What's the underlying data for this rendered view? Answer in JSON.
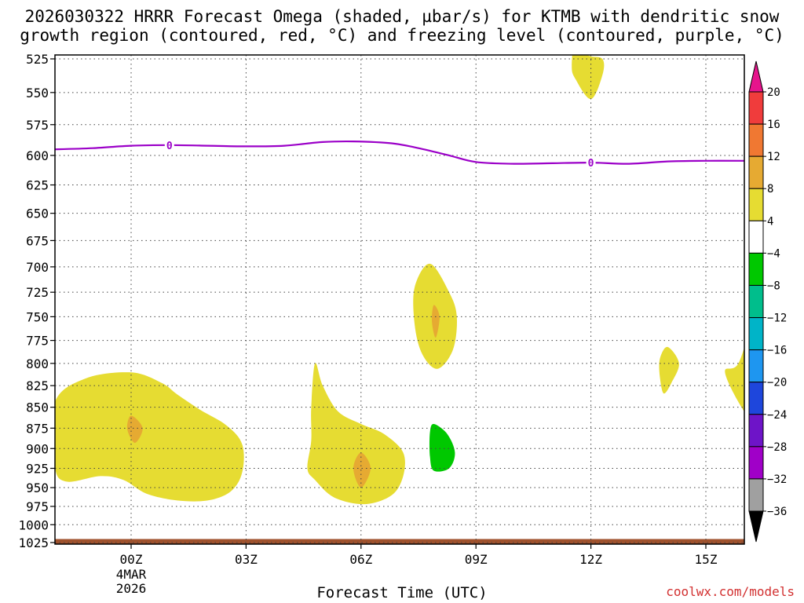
{
  "title": {
    "line1": "2026030322 HRRR Forecast Omega (shaded, µbar/s) for KTMB with dendritic snow",
    "line2": "growth region (contoured, red, °C) and freezing level (contoured, purple, °C)"
  },
  "credit": "coolwx.com/models",
  "chart_data": {
    "type": "time-height contour",
    "xlabel": "Forecast Time (UTC)",
    "x_ticks": [
      {
        "hour": 0,
        "label": "00Z",
        "sub1": "4MAR",
        "sub2": "2026"
      },
      {
        "hour": 3,
        "label": "03Z",
        "sub1": "",
        "sub2": ""
      },
      {
        "hour": 6,
        "label": "06Z",
        "sub1": "",
        "sub2": ""
      },
      {
        "hour": 9,
        "label": "09Z",
        "sub1": "",
        "sub2": ""
      },
      {
        "hour": 12,
        "label": "12Z",
        "sub1": "",
        "sub2": ""
      },
      {
        "hour": 15,
        "label": "15Z",
        "sub1": "",
        "sub2": ""
      }
    ],
    "xlim": [
      -2,
      16
    ],
    "y_ticks": [
      525,
      550,
      575,
      600,
      625,
      650,
      675,
      700,
      725,
      750,
      775,
      800,
      825,
      850,
      875,
      900,
      925,
      950,
      975,
      1000,
      1025
    ],
    "ylim": [
      1025,
      515
    ],
    "y_scale": "log-pressure",
    "grid": true,
    "colorbar": {
      "labels": [
        "20",
        "16",
        "12",
        "8",
        "4",
        "−4",
        "−8",
        "−12",
        "−16",
        "−20",
        "−24",
        "−28",
        "−32",
        "−36"
      ],
      "bins": [
        {
          "from": 16,
          "to": 20,
          "color": "#f03c3c"
        },
        {
          "from": 12,
          "to": 16,
          "color": "#f07832"
        },
        {
          "from": 8,
          "to": 12,
          "color": "#e6aa32"
        },
        {
          "from": 4,
          "to": 8,
          "color": "#e6dc32"
        },
        {
          "from": -4,
          "to": 4,
          "color": "#ffffff"
        },
        {
          "from": -8,
          "to": -4,
          "color": "#00c800"
        },
        {
          "from": -12,
          "to": -8,
          "color": "#00be8c"
        },
        {
          "from": -16,
          "to": -12,
          "color": "#00b4c8"
        },
        {
          "from": -20,
          "to": -16,
          "color": "#1e96f0"
        },
        {
          "from": -24,
          "to": -20,
          "color": "#1e46dc"
        },
        {
          "from": -28,
          "to": -24,
          "color": "#6e14c8"
        },
        {
          "from": -32,
          "to": -28,
          "color": "#a000c8"
        },
        {
          "from": -36,
          "to": -32,
          "color": "#a0a0a0"
        }
      ],
      "over_color": "#e6148c",
      "under_color": "#000000"
    },
    "freezing_level": {
      "label": "0",
      "color": "#9b00c8",
      "label_at_hours": [
        1,
        12
      ],
      "points": [
        [
          -2,
          595
        ],
        [
          -1,
          594
        ],
        [
          0,
          592
        ],
        [
          1,
          591.5
        ],
        [
          2,
          592
        ],
        [
          3,
          592.5
        ],
        [
          4,
          592
        ],
        [
          5,
          589
        ],
        [
          5.8,
          588.5
        ],
        [
          6.8,
          590
        ],
        [
          7.5,
          594
        ],
        [
          8.3,
          600
        ],
        [
          9,
          605.5
        ],
        [
          10,
          607
        ],
        [
          11,
          606.5
        ],
        [
          12,
          606
        ],
        [
          13,
          607
        ],
        [
          14,
          605
        ],
        [
          15,
          604.5
        ],
        [
          16,
          604.5
        ]
      ]
    },
    "omega_regions": [
      {
        "color": "#e6dc32",
        "points": [
          [
            -2,
            845
          ],
          [
            -1.2,
            817
          ],
          [
            0,
            810
          ],
          [
            0.8,
            822
          ],
          [
            1.2,
            835
          ],
          [
            1.8,
            853
          ],
          [
            2.5,
            872
          ],
          [
            2.9,
            895
          ],
          [
            2.9,
            930
          ],
          [
            2.6,
            955
          ],
          [
            2.0,
            967
          ],
          [
            1.2,
            967
          ],
          [
            0.4,
            958
          ],
          [
            -0.2,
            940
          ],
          [
            -0.8,
            935
          ],
          [
            -1.7,
            942
          ],
          [
            -2,
            920
          ]
        ]
      },
      {
        "color": "#e6dc32",
        "points": [
          [
            4.8,
            800
          ],
          [
            5.0,
            825
          ],
          [
            5.4,
            855
          ],
          [
            6.0,
            870
          ],
          [
            6.6,
            882
          ],
          [
            7.1,
            905
          ],
          [
            7.1,
            935
          ],
          [
            6.8,
            960
          ],
          [
            6.1,
            972
          ],
          [
            5.3,
            963
          ],
          [
            4.8,
            940
          ],
          [
            4.6,
            925
          ],
          [
            4.7,
            890
          ],
          [
            4.7,
            850
          ]
        ]
      },
      {
        "color": "#e6dc32",
        "points": [
          [
            7.8,
            697
          ],
          [
            8.3,
            725
          ],
          [
            8.5,
            750
          ],
          [
            8.4,
            785
          ],
          [
            8.0,
            806
          ],
          [
            7.6,
            790
          ],
          [
            7.4,
            758
          ],
          [
            7.4,
            720
          ]
        ]
      },
      {
        "color": "#e6dc32",
        "points": [
          [
            11.6,
            510
          ],
          [
            11.9,
            522
          ],
          [
            12.3,
            525
          ],
          [
            12.3,
            537
          ],
          [
            12.0,
            555
          ],
          [
            11.6,
            540
          ],
          [
            11.5,
            530
          ]
        ]
      },
      {
        "color": "#e6dc32",
        "points": [
          [
            14.0,
            782
          ],
          [
            14.3,
            800
          ],
          [
            14.1,
            822
          ],
          [
            13.9,
            834
          ],
          [
            13.8,
            815
          ],
          [
            13.8,
            795
          ]
        ]
      },
      {
        "color": "#e6dc32",
        "points": [
          [
            15.85,
            800
          ],
          [
            16.4,
            745
          ],
          [
            16.4,
            870
          ],
          [
            16.0,
            855
          ],
          [
            15.5,
            810
          ]
        ]
      },
      {
        "color": "#e6aa32",
        "points": [
          [
            0,
            860
          ],
          [
            0.3,
            875
          ],
          [
            0.1,
            893
          ],
          [
            -0.1,
            876
          ]
        ]
      },
      {
        "color": "#e6aa32",
        "points": [
          [
            6,
            905
          ],
          [
            6.25,
            925
          ],
          [
            6.0,
            950
          ],
          [
            5.8,
            925
          ]
        ]
      },
      {
        "color": "#e6aa32",
        "points": [
          [
            7.9,
            738
          ],
          [
            8.05,
            750
          ],
          [
            7.95,
            772
          ],
          [
            7.85,
            755
          ]
        ]
      },
      {
        "color": "#00c800",
        "points": [
          [
            7.9,
            870
          ],
          [
            8.25,
            882
          ],
          [
            8.45,
            905
          ],
          [
            8.3,
            925
          ],
          [
            7.9,
            928
          ],
          [
            7.8,
            910
          ],
          [
            7.8,
            880
          ]
        ]
      }
    ],
    "ground": {
      "color": "#a0522d",
      "top_hpa": 1020
    }
  }
}
